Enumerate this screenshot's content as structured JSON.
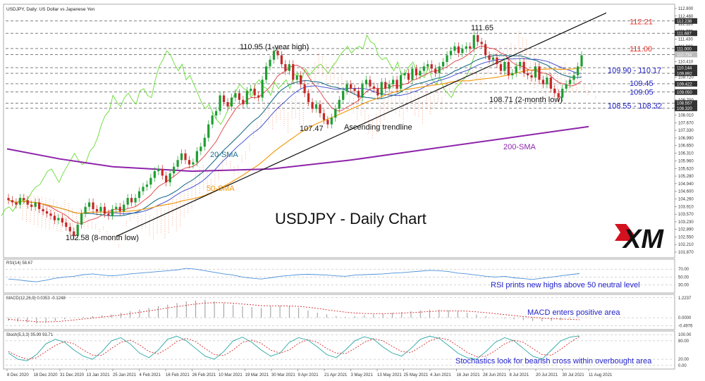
{
  "chart_data": {
    "type": "candlestick",
    "header": "USDJPY, Daily:  US Dollar vs Japanese Yen",
    "title": "USDJPY - Daily Chart",
    "brand": "XM",
    "y_ticks": [
      "112.800",
      "112.460",
      "112.110",
      "111.770",
      "111.430",
      "111.090",
      "110.750",
      "110.410",
      "110.060",
      "109.720",
      "109.380",
      "109.040",
      "108.700",
      "108.360",
      "108.010",
      "107.670",
      "107.330",
      "106.990",
      "106.650",
      "106.310",
      "105.960",
      "105.620",
      "105.280",
      "104.940",
      "104.600",
      "104.260",
      "103.910",
      "103.570",
      "103.230",
      "102.890",
      "102.550",
      "102.210",
      "101.870"
    ],
    "ylim": [
      101.87,
      112.8
    ],
    "x_ticks": [
      "8 Dec 2020",
      "18 Dec 2020",
      "31 Dec 2020",
      "13 Jan 2021",
      "25 Jan 2021",
      "4 Feb 2021",
      "16 Feb 2021",
      "26 Feb 2021",
      "10 Mar 2021",
      "19 Mar 2021",
      "30 Mar 2021",
      "9 Apr 2021",
      "21 Apr 2021",
      "3 May 2021",
      "13 May 2021",
      "25 May 2021",
      "4 Jun 2021",
      "16 Jun 2021",
      "28 Jun 2021",
      "8 Jul 2021",
      "20 Jul 2021",
      "30 Jul 2021",
      "11 Aug 2021"
    ],
    "price_tags": [
      {
        "value": 112.238,
        "label": "112.238",
        "kind": "dark"
      },
      {
        "value": 111.687,
        "label": "111.687",
        "kind": "dark"
      },
      {
        "value": 111.0,
        "label": "111.000",
        "kind": "dark"
      },
      {
        "value": 110.734,
        "label": "110.734",
        "kind": "gray"
      },
      {
        "value": 110.144,
        "label": "110.144",
        "kind": "dark"
      },
      {
        "value": 109.892,
        "label": "109.892",
        "kind": "dark"
      },
      {
        "value": 109.422,
        "label": "109.422",
        "kind": "dark"
      },
      {
        "value": 109.05,
        "label": "109.050",
        "kind": "dark"
      },
      {
        "value": 108.557,
        "label": "108.557",
        "kind": "dark"
      },
      {
        "value": 108.32,
        "label": "108.320",
        "kind": "dark"
      }
    ],
    "levels": [
      {
        "value": 112.21,
        "label": "112.21",
        "color": "#e8302a"
      },
      {
        "value": 111.0,
        "label": "111.00",
        "color": "#e8302a"
      },
      {
        "value": 110.035,
        "label": "109.90 - 110.17",
        "color": "#2222cc"
      },
      {
        "value": 109.45,
        "label": "109.45",
        "color": "#2222cc"
      },
      {
        "value": 109.05,
        "label": "109.05",
        "color": "#2222cc"
      },
      {
        "value": 108.435,
        "label": "108.55 - 108.32",
        "color": "#2222cc"
      }
    ],
    "annotations": [
      {
        "text": "111.65",
        "x": "28 Jun 2021",
        "y": 111.65
      },
      {
        "text": "110.95 (1-year high)",
        "x": "30 Mar 2021",
        "y": 110.95
      },
      {
        "text": "107.47",
        "x": "21 Apr 2021",
        "y": 107.47
      },
      {
        "text": "Ascending trendline",
        "x": "3 May 2021",
        "y": 107.5
      },
      {
        "text": "108.71 (2-month low)",
        "x": "30 Jul 2021",
        "y": 108.71
      },
      {
        "text": "102.58 (8-month low)",
        "x": "31 Dec 2020",
        "y": 102.58
      },
      {
        "text": "20-SMA",
        "color": "#1f6f8b"
      },
      {
        "text": "50-SMA",
        "color": "#f39c12"
      },
      {
        "text": "200-SMA",
        "color": "#8e24aa"
      }
    ],
    "close": [
      104.2,
      104.1,
      104.0,
      104.3,
      104.2,
      104.0,
      103.9,
      104.1,
      103.8,
      103.7,
      103.6,
      103.5,
      103.3,
      103.4,
      103.2,
      103.0,
      102.8,
      102.6,
      103.1,
      103.6,
      103.9,
      104.1,
      103.8,
      103.7,
      103.9,
      103.6,
      103.5,
      103.8,
      103.9,
      103.7,
      104.0,
      104.3,
      104.1,
      104.3,
      104.6,
      104.8,
      104.9,
      105.2,
      105.5,
      105.6,
      105.3,
      105.0,
      105.4,
      105.7,
      106.0,
      106.3,
      106.0,
      105.8,
      105.9,
      106.4,
      106.6,
      107.0,
      107.6,
      108.0,
      108.2,
      108.9,
      108.6,
      108.4,
      108.8,
      109.0,
      108.7,
      108.5,
      109.1,
      109.2,
      108.9,
      108.8,
      109.6,
      110.2,
      110.5,
      110.9,
      110.7,
      110.3,
      110.0,
      110.3,
      109.6,
      109.8,
      109.4,
      109.0,
      108.6,
      108.3,
      108.5,
      108.1,
      107.8,
      107.6,
      107.9,
      108.3,
      108.7,
      109.1,
      109.4,
      109.2,
      109.1,
      108.8,
      109.4,
      109.6,
      109.3,
      109.2,
      108.9,
      109.5,
      109.2,
      109.4,
      109.6,
      109.2,
      109.8,
      109.9,
      109.6,
      110.1,
      109.8,
      110.0,
      110.2,
      110.3,
      110.1,
      109.9,
      110.2,
      110.4,
      110.7,
      110.9,
      111.1,
      110.8,
      111.0,
      111.1,
      111.0,
      111.6,
      111.3,
      111.2,
      110.7,
      110.5,
      110.6,
      110.3,
      110.0,
      110.4,
      109.8,
      109.9,
      110.2,
      110.4,
      109.9,
      109.8,
      109.7,
      110.2,
      109.6,
      109.4,
      109.7,
      109.2,
      109.0,
      108.8,
      109.2,
      109.4,
      109.6,
      109.8,
      110.2,
      110.7
    ],
    "sma200": [
      {
        "x": "8 Dec 2020",
        "y": 106.5
      },
      {
        "x": "31 Dec 2020",
        "y": 106.05
      },
      {
        "x": "25 Jan 2021",
        "y": 105.7
      },
      {
        "x": "26 Feb 2021",
        "y": 105.5
      },
      {
        "x": "30 Mar 2021",
        "y": 105.6
      },
      {
        "x": "3 May 2021",
        "y": 106.0
      },
      {
        "x": "4 Jun 2021",
        "y": 106.5
      },
      {
        "x": "8 Jul 2021",
        "y": 107.0
      },
      {
        "x": "11 Aug 2021",
        "y": 107.5
      }
    ],
    "trendline": [
      {
        "x": "31 Dec 2020",
        "y": 102.58
      },
      {
        "x": "11 Aug 2021",
        "y": 112.6
      }
    ],
    "panels": [
      {
        "id": "rsi",
        "label": "RSI(14) 58.67",
        "ticks": [
          "70.00",
          "50.00",
          "30.00"
        ],
        "tick_values": [
          70,
          50,
          30
        ],
        "range": [
          15,
          90
        ],
        "note": "RSI prints new highs above 50 neutral level",
        "values": [
          45,
          43,
          40,
          38,
          42,
          47,
          50,
          52,
          56,
          58,
          55,
          53,
          55,
          58,
          60,
          62,
          64,
          66,
          68,
          72,
          70,
          66,
          62,
          58,
          55,
          50,
          47,
          45,
          48,
          52,
          54,
          56,
          57,
          56,
          55,
          53,
          52,
          55,
          56,
          57,
          58,
          60,
          61,
          63,
          65,
          67,
          66,
          64,
          60,
          58,
          55,
          52,
          50,
          52,
          48,
          46,
          44,
          47,
          50,
          53,
          56,
          58.67
        ]
      },
      {
        "id": "macd",
        "label": "MACD(12,26,9) 0.0353 -0.1248",
        "ticks": [
          "1.2237",
          "0.0000",
          "-0.4976"
        ],
        "tick_values": [
          1.2237,
          0,
          -0.4976
        ],
        "range": [
          -0.6,
          1.3
        ],
        "note": "MACD enters positive area",
        "hist": [
          -0.2,
          -0.25,
          -0.3,
          -0.35,
          -0.3,
          -0.2,
          -0.1,
          0.0,
          0.05,
          0.1,
          0.15,
          0.2,
          0.3,
          0.4,
          0.5,
          0.6,
          0.7,
          0.8,
          0.9,
          1.0,
          1.05,
          1.1,
          1.0,
          0.9,
          0.8,
          0.7,
          0.65,
          0.6,
          0.7,
          0.75,
          0.7,
          0.6,
          0.45,
          0.3,
          0.2,
          0.1,
          0.05,
          0.1,
          0.15,
          0.2,
          0.25,
          0.3,
          0.35,
          0.4,
          0.45,
          0.5,
          0.5,
          0.45,
          0.4,
          0.3,
          0.2,
          0.1,
          0.0,
          -0.05,
          -0.1,
          -0.15,
          -0.2,
          -0.22,
          -0.2,
          -0.15,
          -0.05,
          0.0353
        ],
        "signal": [
          -0.1,
          -0.15,
          -0.2,
          -0.25,
          -0.26,
          -0.24,
          -0.2,
          -0.14,
          -0.08,
          -0.02,
          0.04,
          0.1,
          0.17,
          0.25,
          0.33,
          0.42,
          0.5,
          0.6,
          0.68,
          0.76,
          0.84,
          0.9,
          0.92,
          0.92,
          0.89,
          0.84,
          0.79,
          0.74,
          0.73,
          0.73,
          0.72,
          0.69,
          0.64,
          0.57,
          0.49,
          0.41,
          0.34,
          0.29,
          0.26,
          0.25,
          0.25,
          0.26,
          0.28,
          0.31,
          0.34,
          0.38,
          0.41,
          0.42,
          0.42,
          0.4,
          0.36,
          0.31,
          0.25,
          0.19,
          0.13,
          0.07,
          0.02,
          -0.03,
          -0.06,
          -0.08,
          -0.1,
          -0.1248
        ]
      },
      {
        "id": "stoch",
        "label": "Stoch(5,3,3) 95.99 93.71",
        "ticks": [
          "100.00",
          "80.00",
          "20.00",
          "0.00"
        ],
        "tick_values": [
          100,
          80,
          20,
          0
        ],
        "range": [
          -5,
          105
        ],
        "note": "Stochastics look for bearish cross within overbought area",
        "k": [
          40,
          20,
          15,
          35,
          70,
          85,
          75,
          50,
          30,
          20,
          45,
          80,
          90,
          70,
          40,
          25,
          50,
          85,
          95,
          80,
          55,
          30,
          20,
          45,
          80,
          92,
          75,
          50,
          30,
          40,
          75,
          90,
          82,
          60,
          35,
          25,
          50,
          80,
          93,
          85,
          60,
          40,
          30,
          55,
          85,
          95,
          88,
          65,
          40,
          25,
          20,
          45,
          75,
          90,
          80,
          55,
          30,
          20,
          50,
          80,
          92,
          95.99
        ],
        "d": [
          45,
          30,
          20,
          25,
          45,
          65,
          78,
          70,
          50,
          33,
          33,
          55,
          75,
          82,
          67,
          45,
          38,
          55,
          78,
          88,
          77,
          55,
          35,
          32,
          50,
          75,
          82,
          72,
          50,
          40,
          50,
          72,
          84,
          75,
          55,
          40,
          38,
          55,
          75,
          87,
          80,
          62,
          45,
          42,
          60,
          80,
          90,
          83,
          63,
          42,
          28,
          30,
          48,
          70,
          82,
          75,
          55,
          35,
          33,
          52,
          75,
          93.71
        ]
      }
    ]
  }
}
